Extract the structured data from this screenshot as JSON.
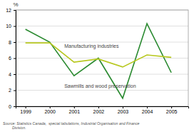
{
  "chart_data": {
    "type": "line",
    "x": [
      1999,
      2000,
      2001,
      2002,
      2003,
      2004,
      2005
    ],
    "series": [
      {
        "color": "#2a8a30",
        "values": [
          9.6,
          8.0,
          3.8,
          6.0,
          1.0,
          10.3,
          4.2
        ]
      },
      {
        "color": "#b8c820",
        "values": [
          7.9,
          7.9,
          5.5,
          5.9,
          4.9,
          6.4,
          6.1
        ]
      }
    ],
    "xlim": [
      1998.6,
      2005.7
    ],
    "xticks": [
      1999,
      2000,
      2001,
      2002,
      2003,
      2004,
      2005
    ],
    "ylim": [
      0,
      12
    ],
    "yticks": [
      0,
      2,
      4,
      6,
      8,
      10,
      12
    ],
    "ylabel": "%",
    "grid": true,
    "annotations": [
      {
        "text": "Manufacturing industries",
        "x": 2000.6,
        "y": 7.5
      },
      {
        "text": "Sawmills and wood preservation",
        "x": 2000.6,
        "y": 2.5
      }
    ],
    "source": "Source: Statistics Canada,  special tabulations, Industrial Organisation and Finance\n         Division."
  }
}
